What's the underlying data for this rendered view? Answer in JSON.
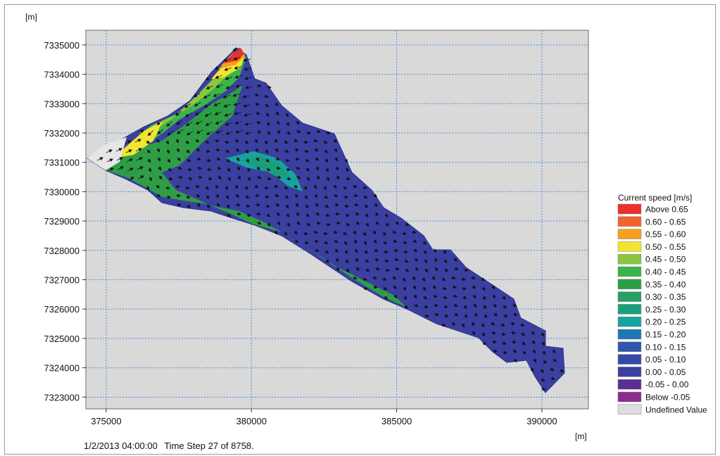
{
  "chart_data": {
    "type": "heatmap",
    "ylabel": "[m]",
    "xlabel": "[m]",
    "xlim": [
      374300,
      391600
    ],
    "ylim": [
      7322600,
      7335500
    ],
    "x_ticks": [
      375000,
      380000,
      385000,
      390000
    ],
    "y_ticks": [
      7323000,
      7324000,
      7325000,
      7326000,
      7327000,
      7328000,
      7329000,
      7330000,
      7331000,
      7332000,
      7333000,
      7334000,
      7335000
    ],
    "grid": true,
    "legend_position": "right",
    "legend": {
      "title": "Current speed [m/s]",
      "items": [
        {
          "label": "Above  0.65",
          "color": "#e8322a"
        },
        {
          "label": "0.60 -  0.65",
          "color": "#f2632d"
        },
        {
          "label": "0.55 -  0.60",
          "color": "#f6a01e"
        },
        {
          "label": "0.50 -  0.55",
          "color": "#f2e531"
        },
        {
          "label": "0.45 -  0.50",
          "color": "#8cc63f"
        },
        {
          "label": "0.40 -  0.45",
          "color": "#39b54a"
        },
        {
          "label": "0.35 -  0.40",
          "color": "#2e9e46"
        },
        {
          "label": "0.30 -  0.35",
          "color": "#24a163"
        },
        {
          "label": "0.25 -  0.30",
          "color": "#1a9f7d"
        },
        {
          "label": "0.20 -  0.25",
          "color": "#17a3a0"
        },
        {
          "label": "0.15 -  0.20",
          "color": "#1f77b4"
        },
        {
          "label": "0.10 -  0.15",
          "color": "#3057b0"
        },
        {
          "label": "0.05 -  0.10",
          "color": "#3449a8"
        },
        {
          "label": "0.00 -  0.05",
          "color": "#3a3fa0"
        },
        {
          "label": "-0.05 -  0.00",
          "color": "#5b2c93"
        },
        {
          "label": "Below -0.05",
          "color": "#8b2c8e"
        },
        {
          "label": "Undefined Value",
          "color": "#dddddd"
        }
      ]
    }
  },
  "status": {
    "timestamp": "1/2/2013 04:00:00",
    "time_step": "Time Step 27 of 8758."
  }
}
